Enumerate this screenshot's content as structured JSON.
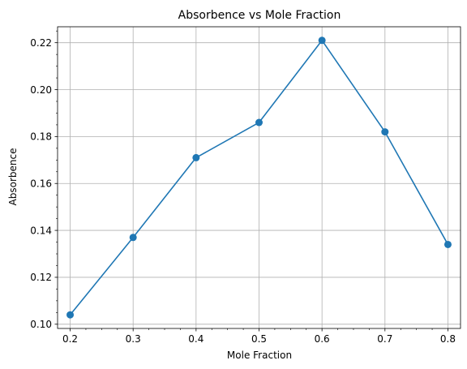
{
  "chart_data": {
    "type": "line",
    "title": "Absorbence vs Mole Fraction",
    "xlabel": "Mole Fraction",
    "ylabel": "Absorbence",
    "x": [
      0.2,
      0.3,
      0.4,
      0.5,
      0.6,
      0.7,
      0.8
    ],
    "series": [
      {
        "values": [
          0.104,
          0.137,
          0.171,
          0.186,
          0.221,
          0.182,
          0.134
        ],
        "color": "#1f77b4",
        "markers": true
      }
    ],
    "xlim": [
      0.18,
      0.82
    ],
    "ylim": [
      0.0982,
      0.2268
    ],
    "xticks": [
      0.2,
      0.3,
      0.4,
      0.5,
      0.6,
      0.7,
      0.8
    ],
    "xtick_labels": [
      "0.2",
      "0.3",
      "0.4",
      "0.5",
      "0.6",
      "0.7",
      "0.8"
    ],
    "yticks": [
      0.1,
      0.12,
      0.14,
      0.16,
      0.18,
      0.2,
      0.22
    ],
    "ytick_labels": [
      "0.10",
      "0.12",
      "0.14",
      "0.16",
      "0.18",
      "0.20",
      "0.22"
    ],
    "grid": true,
    "minor_ticks": true
  }
}
